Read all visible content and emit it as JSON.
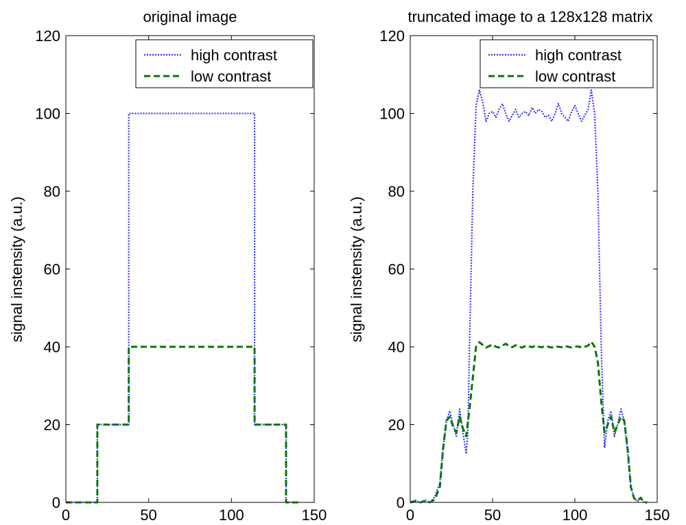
{
  "colors": {
    "high_contrast": "#3333ff",
    "low_contrast": "#007700",
    "axis": "#000000"
  },
  "chart_data": [
    {
      "type": "line",
      "title": "original image",
      "xlabel": "",
      "ylabel": "signal instensity (a.u.)",
      "xlim": [
        0,
        150
      ],
      "ylim": [
        0,
        120
      ],
      "xticks": [
        0,
        50,
        100,
        150
      ],
      "yticks": [
        0,
        20,
        40,
        60,
        80,
        100,
        120
      ],
      "grid": false,
      "legend_position": "top-right",
      "series": [
        {
          "name": "high contrast",
          "style": "dotted",
          "color": "#3333ff",
          "x": [
            0,
            19,
            19,
            38,
            38,
            114,
            114,
            133,
            133,
            141
          ],
          "y": [
            0,
            0,
            20,
            20,
            100,
            100,
            20,
            20,
            0,
            0
          ]
        },
        {
          "name": "low contrast",
          "style": "dashed",
          "color": "#007700",
          "x": [
            0,
            19,
            19,
            38,
            38,
            114,
            114,
            133,
            133,
            141
          ],
          "y": [
            0,
            0,
            20,
            20,
            40,
            40,
            20,
            20,
            0,
            0
          ]
        }
      ]
    },
    {
      "type": "line",
      "title": "truncated image to a 128x128 matrix",
      "xlabel": "",
      "ylabel": "signal instensity (a.u.)",
      "xlim": [
        0,
        150
      ],
      "ylim": [
        0,
        120
      ],
      "xticks": [
        0,
        50,
        100,
        150
      ],
      "yticks": [
        0,
        20,
        40,
        60,
        80,
        100,
        120
      ],
      "grid": false,
      "legend_position": "top-right",
      "series": [
        {
          "name": "high contrast",
          "style": "dotted",
          "color": "#3333ff",
          "x": [
            0,
            3,
            6,
            9,
            12,
            15,
            18,
            20,
            22,
            24,
            26,
            28,
            30,
            32,
            34,
            35,
            36,
            38,
            40,
            42,
            44,
            46,
            48,
            50,
            52,
            54,
            56,
            58,
            60,
            62,
            64,
            66,
            68,
            70,
            72,
            74,
            76,
            78,
            80,
            82,
            84,
            86,
            88,
            90,
            92,
            94,
            96,
            98,
            100,
            102,
            104,
            106,
            108,
            110,
            112,
            114,
            116,
            118,
            120,
            122,
            124,
            126,
            128,
            130,
            132,
            134,
            136,
            138,
            140,
            142,
            144
          ],
          "y": [
            0,
            0.6,
            0,
            0.6,
            0,
            1.5,
            5,
            14,
            21,
            23.5,
            20,
            17,
            24,
            18,
            12.5,
            18,
            40,
            80,
            102,
            106,
            103,
            98,
            100,
            100.5,
            99,
            101,
            102.5,
            100,
            98,
            99.5,
            101,
            99,
            100,
            100.5,
            99.5,
            101.5,
            100,
            101,
            100.5,
            99,
            99.5,
            98,
            100,
            102.5,
            100,
            99,
            98,
            100.5,
            102,
            100,
            98,
            99.5,
            101,
            106,
            100,
            80,
            40,
            14,
            21,
            23.5,
            17,
            20,
            24,
            21,
            13,
            4,
            1.2,
            0.2,
            1,
            0,
            0
          ]
        },
        {
          "name": "low contrast",
          "style": "dashed",
          "color": "#007700",
          "x": [
            0,
            3,
            6,
            9,
            12,
            15,
            18,
            20,
            22,
            24,
            26,
            28,
            30,
            32,
            34,
            36,
            38,
            40,
            42,
            44,
            46,
            48,
            50,
            52,
            54,
            56,
            58,
            60,
            62,
            64,
            66,
            68,
            70,
            72,
            74,
            76,
            78,
            80,
            82,
            84,
            86,
            88,
            90,
            92,
            94,
            96,
            98,
            100,
            102,
            104,
            106,
            108,
            110,
            112,
            114,
            116,
            118,
            120,
            122,
            124,
            126,
            128,
            130,
            132,
            134,
            136,
            138,
            140,
            142,
            144
          ],
          "y": [
            0,
            0.3,
            0,
            0.3,
            0,
            0.8,
            4,
            14,
            21,
            22,
            19.5,
            18,
            22,
            19,
            17,
            24,
            32,
            40,
            41.2,
            40.5,
            39.8,
            40.2,
            40.6,
            40,
            39.8,
            40.3,
            40.8,
            40.2,
            39.9,
            40.4,
            40,
            39.8,
            40.2,
            40.1,
            39.9,
            40.3,
            40,
            39.9,
            40.2,
            40,
            39.8,
            40.1,
            40,
            39.9,
            40.2,
            40,
            39.8,
            40,
            40.1,
            39.8,
            40,
            40.3,
            41.3,
            40,
            36,
            26,
            18,
            20,
            22,
            18,
            20,
            22,
            21,
            14,
            4,
            1,
            0.5,
            1.2,
            0,
            0
          ]
        }
      ]
    }
  ]
}
